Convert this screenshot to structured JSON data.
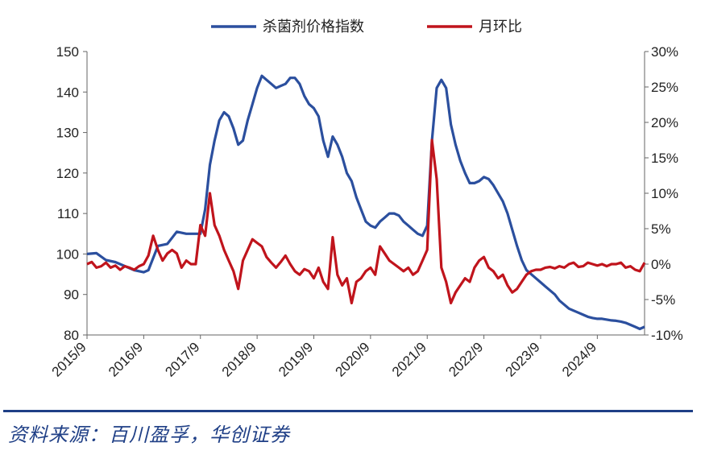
{
  "chart_data": {
    "type": "line",
    "title": "",
    "xlabel": "",
    "ylabel_left": "",
    "ylabel_right": "",
    "x_ticks": [
      "2015/9",
      "2016/9",
      "2017/9",
      "2018/9",
      "2019/9",
      "2020/9",
      "2021/9",
      "2022/9",
      "2023/9",
      "2024/9"
    ],
    "y_left_ticks": [
      "80",
      "90",
      "100",
      "110",
      "120",
      "130",
      "140",
      "150"
    ],
    "y_right_ticks": [
      "-10%",
      "-5%",
      "0%",
      "5%",
      "10%",
      "15%",
      "20%",
      "25%",
      "30%"
    ],
    "ylim_left": [
      80,
      150
    ],
    "ylim_right": [
      -10,
      30
    ],
    "xlim": [
      "2015-09",
      "2025-07"
    ],
    "legend_position": "top-center",
    "grid": false,
    "series": [
      {
        "name": "杀菌剂价格指数",
        "axis": "left",
        "color": "#2b4f9e",
        "points": [
          [
            "2015-09",
            100
          ],
          [
            "2015-11",
            100.2
          ],
          [
            "2016-01",
            98.5
          ],
          [
            "2016-03",
            98
          ],
          [
            "2016-05",
            97
          ],
          [
            "2016-07",
            96
          ],
          [
            "2016-09",
            95.5
          ],
          [
            "2016-10",
            96
          ],
          [
            "2016-12",
            102
          ],
          [
            "2017-02",
            102.5
          ],
          [
            "2017-03",
            104
          ],
          [
            "2017-04",
            105.5
          ],
          [
            "2017-06",
            105
          ],
          [
            "2017-08",
            105
          ],
          [
            "2017-09",
            105
          ],
          [
            "2017-10",
            111
          ],
          [
            "2017-11",
            122
          ],
          [
            "2017-12",
            128
          ],
          [
            "2018-01",
            133
          ],
          [
            "2018-02",
            135
          ],
          [
            "2018-03",
            134
          ],
          [
            "2018-04",
            131
          ],
          [
            "2018-05",
            127
          ],
          [
            "2018-06",
            128
          ],
          [
            "2018-07",
            133
          ],
          [
            "2018-08",
            137
          ],
          [
            "2018-09",
            141
          ],
          [
            "2018-10",
            144
          ],
          [
            "2018-11",
            143
          ],
          [
            "2018-12",
            142
          ],
          [
            "2019-01",
            141
          ],
          [
            "2019-02",
            141.5
          ],
          [
            "2019-03",
            142
          ],
          [
            "2019-04",
            143.5
          ],
          [
            "2019-05",
            143.5
          ],
          [
            "2019-06",
            142
          ],
          [
            "2019-07",
            139
          ],
          [
            "2019-08",
            137
          ],
          [
            "2019-09",
            136
          ],
          [
            "2019-10",
            134
          ],
          [
            "2019-11",
            128
          ],
          [
            "2019-12",
            124
          ],
          [
            "2020-01",
            129
          ],
          [
            "2020-02",
            127
          ],
          [
            "2020-03",
            124
          ],
          [
            "2020-04",
            120
          ],
          [
            "2020-05",
            118
          ],
          [
            "2020-06",
            114
          ],
          [
            "2020-07",
            111
          ],
          [
            "2020-08",
            108
          ],
          [
            "2020-09",
            107
          ],
          [
            "2020-10",
            106.5
          ],
          [
            "2020-11",
            108
          ],
          [
            "2020-12",
            109
          ],
          [
            "2021-01",
            110
          ],
          [
            "2021-02",
            110
          ],
          [
            "2021-03",
            109.5
          ],
          [
            "2021-04",
            108
          ],
          [
            "2021-05",
            107
          ],
          [
            "2021-06",
            106
          ],
          [
            "2021-07",
            105
          ],
          [
            "2021-08",
            104.5
          ],
          [
            "2021-09",
            107
          ],
          [
            "2021-10",
            128
          ],
          [
            "2021-11",
            141
          ],
          [
            "2021-12",
            143
          ],
          [
            "2022-01",
            141
          ],
          [
            "2022-02",
            132
          ],
          [
            "2022-03",
            127
          ],
          [
            "2022-04",
            123
          ],
          [
            "2022-05",
            120
          ],
          [
            "2022-06",
            117.5
          ],
          [
            "2022-07",
            117.5
          ],
          [
            "2022-08",
            118
          ],
          [
            "2022-09",
            119
          ],
          [
            "2022-10",
            118.5
          ],
          [
            "2022-11",
            117
          ],
          [
            "2022-12",
            115
          ],
          [
            "2023-01",
            113
          ],
          [
            "2023-02",
            110
          ],
          [
            "2023-03",
            106
          ],
          [
            "2023-04",
            102
          ],
          [
            "2023-05",
            98.5
          ],
          [
            "2023-06",
            96
          ],
          [
            "2023-07",
            95
          ],
          [
            "2023-08",
            94
          ],
          [
            "2023-09",
            93
          ],
          [
            "2023-10",
            92
          ],
          [
            "2023-11",
            91
          ],
          [
            "2023-12",
            90
          ],
          [
            "2024-01",
            88.5
          ],
          [
            "2024-02",
            87.5
          ],
          [
            "2024-03",
            86.5
          ],
          [
            "2024-04",
            86
          ],
          [
            "2024-05",
            85.5
          ],
          [
            "2024-06",
            85
          ],
          [
            "2024-07",
            84.5
          ],
          [
            "2024-08",
            84.2
          ],
          [
            "2024-09",
            84
          ],
          [
            "2024-10",
            84
          ],
          [
            "2024-11",
            83.8
          ],
          [
            "2024-12",
            83.6
          ],
          [
            "2025-01",
            83.5
          ],
          [
            "2025-02",
            83.3
          ],
          [
            "2025-03",
            83
          ],
          [
            "2025-04",
            82.5
          ],
          [
            "2025-05",
            82
          ],
          [
            "2025-06",
            81.5
          ],
          [
            "2025-07",
            82
          ]
        ]
      },
      {
        "name": "月环比",
        "axis": "right",
        "color": "#c0141c",
        "points": [
          [
            "2015-09",
            0
          ],
          [
            "2015-10",
            0.3
          ],
          [
            "2015-11",
            -0.5
          ],
          [
            "2015-12",
            -0.3
          ],
          [
            "2016-01",
            0.2
          ],
          [
            "2016-02",
            -0.5
          ],
          [
            "2016-03",
            -0.2
          ],
          [
            "2016-04",
            -0.8
          ],
          [
            "2016-05",
            -0.3
          ],
          [
            "2016-06",
            -0.5
          ],
          [
            "2016-07",
            -0.8
          ],
          [
            "2016-08",
            -0.3
          ],
          [
            "2016-09",
            0
          ],
          [
            "2016-10",
            1.2
          ],
          [
            "2016-11",
            4
          ],
          [
            "2016-12",
            2
          ],
          [
            "2017-01",
            0.5
          ],
          [
            "2017-02",
            1.5
          ],
          [
            "2017-03",
            2
          ],
          [
            "2017-04",
            1.5
          ],
          [
            "2017-05",
            -0.5
          ],
          [
            "2017-06",
            0.5
          ],
          [
            "2017-07",
            0
          ],
          [
            "2017-08",
            0
          ],
          [
            "2017-09",
            5.5
          ],
          [
            "2017-10",
            4
          ],
          [
            "2017-11",
            10
          ],
          [
            "2017-12",
            5.5
          ],
          [
            "2018-01",
            4
          ],
          [
            "2018-02",
            2
          ],
          [
            "2018-03",
            0.5
          ],
          [
            "2018-04",
            -1
          ],
          [
            "2018-05",
            -3.5
          ],
          [
            "2018-06",
            0.5
          ],
          [
            "2018-07",
            2
          ],
          [
            "2018-08",
            3.5
          ],
          [
            "2018-09",
            3
          ],
          [
            "2018-10",
            2.5
          ],
          [
            "2018-11",
            1
          ],
          [
            "2018-12",
            0.2
          ],
          [
            "2019-01",
            -0.5
          ],
          [
            "2019-02",
            0.3
          ],
          [
            "2019-03",
            1.2
          ],
          [
            "2019-04",
            0
          ],
          [
            "2019-05",
            -1
          ],
          [
            "2019-06",
            -1.5
          ],
          [
            "2019-07",
            -0.7
          ],
          [
            "2019-08",
            -1
          ],
          [
            "2019-09",
            -2
          ],
          [
            "2019-10",
            -0.5
          ],
          [
            "2019-11",
            -2.5
          ],
          [
            "2019-12",
            -3.5
          ],
          [
            "2020-01",
            3.8
          ],
          [
            "2020-02",
            -1.5
          ],
          [
            "2020-03",
            -3
          ],
          [
            "2020-04",
            -2
          ],
          [
            "2020-05",
            -5.5
          ],
          [
            "2020-06",
            -2.5
          ],
          [
            "2020-07",
            -2
          ],
          [
            "2020-08",
            -1
          ],
          [
            "2020-09",
            -0.5
          ],
          [
            "2020-10",
            -1.5
          ],
          [
            "2020-11",
            2.5
          ],
          [
            "2020-12",
            1.5
          ],
          [
            "2021-01",
            0.5
          ],
          [
            "2021-02",
            0
          ],
          [
            "2021-03",
            -0.5
          ],
          [
            "2021-04",
            -1
          ],
          [
            "2021-05",
            -0.5
          ],
          [
            "2021-06",
            -1.5
          ],
          [
            "2021-07",
            -1
          ],
          [
            "2021-08",
            0.5
          ],
          [
            "2021-09",
            2
          ],
          [
            "2021-10",
            17.5
          ],
          [
            "2021-11",
            12
          ],
          [
            "2021-12",
            -0.5
          ],
          [
            "2022-01",
            -2.5
          ],
          [
            "2022-02",
            -5.5
          ],
          [
            "2022-03",
            -4
          ],
          [
            "2022-04",
            -3
          ],
          [
            "2022-05",
            -2
          ],
          [
            "2022-06",
            -2.5
          ],
          [
            "2022-07",
            -0.5
          ],
          [
            "2022-08",
            0.5
          ],
          [
            "2022-09",
            1
          ],
          [
            "2022-10",
            -0.5
          ],
          [
            "2022-11",
            -1
          ],
          [
            "2022-12",
            -2
          ],
          [
            "2023-01",
            -1.5
          ],
          [
            "2023-02",
            -3
          ],
          [
            "2023-03",
            -4
          ],
          [
            "2023-04",
            -3.5
          ],
          [
            "2023-05",
            -2.5
          ],
          [
            "2023-06",
            -1.5
          ],
          [
            "2023-07",
            -1
          ],
          [
            "2023-08",
            -0.8
          ],
          [
            "2023-09",
            -0.8
          ],
          [
            "2023-10",
            -0.5
          ],
          [
            "2023-11",
            -0.4
          ],
          [
            "2023-12",
            -0.6
          ],
          [
            "2024-01",
            -0.3
          ],
          [
            "2024-02",
            -0.5
          ],
          [
            "2024-03",
            0
          ],
          [
            "2024-04",
            0.2
          ],
          [
            "2024-05",
            -0.4
          ],
          [
            "2024-06",
            -0.3
          ],
          [
            "2024-07",
            0.2
          ],
          [
            "2024-08",
            0
          ],
          [
            "2024-09",
            -0.2
          ],
          [
            "2024-10",
            0
          ],
          [
            "2024-11",
            -0.3
          ],
          [
            "2024-12",
            0
          ],
          [
            "2025-01",
            0
          ],
          [
            "2025-02",
            0.2
          ],
          [
            "2025-03",
            -0.5
          ],
          [
            "2025-04",
            -0.3
          ],
          [
            "2025-05",
            -0.8
          ],
          [
            "2025-06",
            -1
          ],
          [
            "2025-07",
            0.2
          ]
        ]
      }
    ]
  },
  "source": "资料来源：百川盈孚，华创证券"
}
